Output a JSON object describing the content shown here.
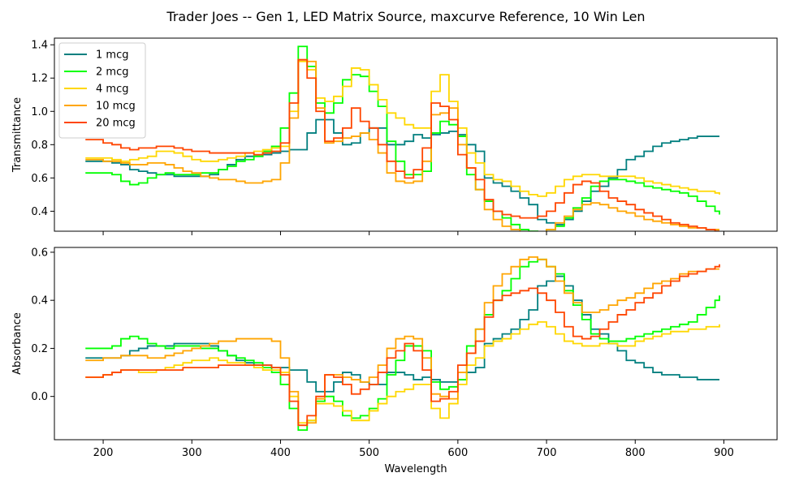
{
  "title": "Trader Joes -- Gen 1, LED Matrix Source, maxcurve Reference, 10 Win Len",
  "chart_data": [
    {
      "type": "line",
      "step": true,
      "ylabel": "Transmittance",
      "xlabel": "",
      "xlim": [
        145,
        960
      ],
      "ylim": [
        0.28,
        1.44
      ],
      "xticks": [
        200,
        300,
        400,
        500,
        600,
        700,
        800,
        900
      ],
      "yticks": [
        0.4,
        0.6,
        0.8,
        1.0,
        1.2,
        1.4
      ],
      "ytick_labels": [
        "0.4",
        "0.6",
        "0.8",
        "1.0",
        "1.2",
        "1.4"
      ],
      "legend": "top-left",
      "x": [
        180,
        190,
        200,
        210,
        220,
        230,
        240,
        250,
        260,
        270,
        280,
        290,
        300,
        310,
        320,
        330,
        340,
        350,
        360,
        370,
        380,
        390,
        400,
        410,
        420,
        430,
        440,
        450,
        460,
        470,
        480,
        490,
        500,
        510,
        520,
        530,
        540,
        550,
        560,
        570,
        580,
        590,
        600,
        610,
        620,
        630,
        640,
        650,
        660,
        670,
        680,
        690,
        700,
        710,
        720,
        730,
        740,
        750,
        760,
        770,
        780,
        790,
        800,
        810,
        820,
        830,
        840,
        850,
        860,
        870,
        880,
        890,
        895
      ],
      "series": [
        {
          "name": "1 mcg",
          "color": "#007f7f",
          "values": [
            0.7,
            0.7,
            0.7,
            0.69,
            0.68,
            0.65,
            0.64,
            0.63,
            0.62,
            0.62,
            0.61,
            0.61,
            0.61,
            0.61,
            0.62,
            0.65,
            0.68,
            0.71,
            0.73,
            0.73,
            0.74,
            0.75,
            0.76,
            0.77,
            0.77,
            0.87,
            0.95,
            0.95,
            0.87,
            0.8,
            0.81,
            0.87,
            0.9,
            0.9,
            0.8,
            0.8,
            0.82,
            0.86,
            0.84,
            0.86,
            0.87,
            0.88,
            0.86,
            0.8,
            0.76,
            0.6,
            0.57,
            0.55,
            0.52,
            0.48,
            0.44,
            0.35,
            0.33,
            0.32,
            0.35,
            0.4,
            0.46,
            0.52,
            0.55,
            0.6,
            0.65,
            0.71,
            0.73,
            0.76,
            0.79,
            0.81,
            0.82,
            0.83,
            0.84,
            0.85,
            0.85,
            0.85,
            0.85
          ]
        },
        {
          "name": "2 mcg",
          "color": "#00ff00",
          "values": [
            0.63,
            0.63,
            0.63,
            0.62,
            0.58,
            0.56,
            0.57,
            0.6,
            0.62,
            0.63,
            0.62,
            0.62,
            0.62,
            0.63,
            0.63,
            0.65,
            0.67,
            0.7,
            0.71,
            0.73,
            0.76,
            0.79,
            0.9,
            1.11,
            1.39,
            1.27,
            1.05,
            0.99,
            1.05,
            1.19,
            1.22,
            1.21,
            1.12,
            1.03,
            0.82,
            0.7,
            0.62,
            0.62,
            0.64,
            0.87,
            0.94,
            0.92,
            0.85,
            0.62,
            0.53,
            0.46,
            0.4,
            0.36,
            0.32,
            0.29,
            0.28,
            0.27,
            0.29,
            0.31,
            0.36,
            0.42,
            0.48,
            0.55,
            0.58,
            0.59,
            0.59,
            0.58,
            0.57,
            0.55,
            0.54,
            0.53,
            0.52,
            0.51,
            0.49,
            0.46,
            0.43,
            0.4,
            0.38
          ]
        },
        {
          "name": "4 mcg",
          "color": "#ffd700",
          "values": [
            0.72,
            0.72,
            0.72,
            0.71,
            0.7,
            0.71,
            0.72,
            0.73,
            0.76,
            0.76,
            0.75,
            0.73,
            0.71,
            0.7,
            0.7,
            0.71,
            0.72,
            0.73,
            0.75,
            0.76,
            0.77,
            0.78,
            0.79,
            1.0,
            1.3,
            1.25,
            1.08,
            1.06,
            1.09,
            1.15,
            1.26,
            1.25,
            1.16,
            1.07,
            0.99,
            0.96,
            0.92,
            0.9,
            0.9,
            1.12,
            1.22,
            1.06,
            0.9,
            0.75,
            0.69,
            0.62,
            0.59,
            0.58,
            0.55,
            0.52,
            0.5,
            0.49,
            0.51,
            0.55,
            0.59,
            0.61,
            0.62,
            0.62,
            0.61,
            0.61,
            0.61,
            0.61,
            0.6,
            0.58,
            0.57,
            0.56,
            0.55,
            0.54,
            0.53,
            0.52,
            0.52,
            0.51,
            0.5
          ]
        },
        {
          "name": "10 mcg",
          "color": "#ffa500",
          "values": [
            0.71,
            0.71,
            0.7,
            0.7,
            0.69,
            0.68,
            0.68,
            0.69,
            0.69,
            0.68,
            0.66,
            0.64,
            0.63,
            0.61,
            0.6,
            0.59,
            0.59,
            0.58,
            0.57,
            0.57,
            0.58,
            0.59,
            0.69,
            0.96,
            1.31,
            1.3,
            1.02,
            0.81,
            0.82,
            0.84,
            0.85,
            0.87,
            0.83,
            0.75,
            0.63,
            0.58,
            0.57,
            0.58,
            0.7,
            0.98,
            0.99,
            1.02,
            0.8,
            0.66,
            0.53,
            0.41,
            0.35,
            0.31,
            0.29,
            0.27,
            0.26,
            0.27,
            0.29,
            0.33,
            0.37,
            0.41,
            0.44,
            0.45,
            0.44,
            0.42,
            0.4,
            0.39,
            0.37,
            0.35,
            0.34,
            0.33,
            0.32,
            0.31,
            0.3,
            0.3,
            0.29,
            0.29,
            0.29
          ]
        },
        {
          "name": "20 mcg",
          "color": "#ff4500",
          "values": [
            0.83,
            0.83,
            0.81,
            0.8,
            0.78,
            0.77,
            0.78,
            0.78,
            0.79,
            0.79,
            0.78,
            0.77,
            0.76,
            0.76,
            0.75,
            0.75,
            0.75,
            0.75,
            0.75,
            0.74,
            0.75,
            0.76,
            0.81,
            1.05,
            1.31,
            1.2,
            1.0,
            0.82,
            0.84,
            0.9,
            1.02,
            0.94,
            0.9,
            0.8,
            0.7,
            0.64,
            0.6,
            0.65,
            0.78,
            1.05,
            1.03,
            0.95,
            0.74,
            0.66,
            0.59,
            0.47,
            0.4,
            0.38,
            0.37,
            0.36,
            0.36,
            0.37,
            0.4,
            0.45,
            0.51,
            0.56,
            0.58,
            0.57,
            0.52,
            0.48,
            0.46,
            0.44,
            0.41,
            0.39,
            0.37,
            0.35,
            0.33,
            0.32,
            0.31,
            0.3,
            0.29,
            0.28,
            0.28
          ]
        }
      ]
    },
    {
      "type": "line",
      "step": true,
      "ylabel": "Absorbance",
      "xlabel": "Wavelength",
      "xlim": [
        145,
        960
      ],
      "ylim": [
        -0.18,
        0.62
      ],
      "xticks": [
        200,
        300,
        400,
        500,
        600,
        700,
        800,
        900
      ],
      "xtick_labels": [
        "200",
        "300",
        "400",
        "500",
        "600",
        "700",
        "800",
        "900"
      ],
      "yticks": [
        0.0,
        0.2,
        0.4,
        0.6
      ],
      "ytick_labels": [
        "0.0",
        "0.2",
        "0.4",
        "0.6"
      ],
      "x": [
        180,
        190,
        200,
        210,
        220,
        230,
        240,
        250,
        260,
        270,
        280,
        290,
        300,
        310,
        320,
        330,
        340,
        350,
        360,
        370,
        380,
        390,
        400,
        410,
        420,
        430,
        440,
        450,
        460,
        470,
        480,
        490,
        500,
        510,
        520,
        530,
        540,
        550,
        560,
        570,
        580,
        590,
        600,
        610,
        620,
        630,
        640,
        650,
        660,
        670,
        680,
        690,
        700,
        710,
        720,
        730,
        740,
        750,
        760,
        770,
        780,
        790,
        800,
        810,
        820,
        830,
        840,
        850,
        860,
        870,
        880,
        890,
        895
      ],
      "series": [
        {
          "name": "1 mcg",
          "color": "#007f7f",
          "values": [
            0.16,
            0.16,
            0.16,
            0.16,
            0.17,
            0.19,
            0.2,
            0.21,
            0.21,
            0.21,
            0.22,
            0.22,
            0.22,
            0.22,
            0.21,
            0.19,
            0.17,
            0.15,
            0.14,
            0.13,
            0.13,
            0.12,
            0.12,
            0.11,
            0.11,
            0.06,
            0.02,
            0.02,
            0.06,
            0.1,
            0.09,
            0.06,
            0.05,
            0.05,
            0.1,
            0.1,
            0.09,
            0.07,
            0.08,
            0.07,
            0.06,
            0.06,
            0.07,
            0.1,
            0.12,
            0.22,
            0.24,
            0.26,
            0.28,
            0.32,
            0.36,
            0.46,
            0.48,
            0.5,
            0.46,
            0.4,
            0.34,
            0.28,
            0.26,
            0.22,
            0.19,
            0.15,
            0.14,
            0.12,
            0.1,
            0.09,
            0.09,
            0.08,
            0.08,
            0.07,
            0.07,
            0.07,
            0.07
          ]
        },
        {
          "name": "2 mcg",
          "color": "#00ff00",
          "values": [
            0.2,
            0.2,
            0.2,
            0.21,
            0.24,
            0.25,
            0.24,
            0.22,
            0.21,
            0.2,
            0.21,
            0.21,
            0.21,
            0.2,
            0.2,
            0.19,
            0.17,
            0.16,
            0.15,
            0.14,
            0.12,
            0.1,
            0.05,
            -0.05,
            -0.14,
            -0.1,
            -0.02,
            0.0,
            -0.02,
            -0.08,
            -0.09,
            -0.08,
            -0.05,
            -0.01,
            0.09,
            0.15,
            0.21,
            0.21,
            0.19,
            0.06,
            0.03,
            0.04,
            0.07,
            0.21,
            0.28,
            0.34,
            0.4,
            0.44,
            0.49,
            0.54,
            0.56,
            0.57,
            0.54,
            0.51,
            0.44,
            0.38,
            0.32,
            0.26,
            0.24,
            0.23,
            0.23,
            0.24,
            0.25,
            0.26,
            0.27,
            0.28,
            0.29,
            0.3,
            0.31,
            0.34,
            0.37,
            0.4,
            0.42
          ]
        },
        {
          "name": "4 mcg",
          "color": "#ffd700",
          "values": [
            0.08,
            0.08,
            0.09,
            0.1,
            0.11,
            0.11,
            0.1,
            0.1,
            0.11,
            0.12,
            0.13,
            0.14,
            0.15,
            0.15,
            0.16,
            0.15,
            0.14,
            0.14,
            0.13,
            0.12,
            0.11,
            0.11,
            0.1,
            0.0,
            -0.11,
            -0.1,
            -0.03,
            -0.03,
            -0.04,
            -0.06,
            -0.1,
            -0.1,
            -0.06,
            -0.03,
            0.0,
            0.02,
            0.03,
            0.05,
            0.05,
            -0.05,
            -0.09,
            -0.03,
            0.05,
            0.13,
            0.16,
            0.21,
            0.23,
            0.24,
            0.26,
            0.28,
            0.3,
            0.31,
            0.29,
            0.26,
            0.23,
            0.22,
            0.21,
            0.21,
            0.22,
            0.22,
            0.21,
            0.21,
            0.23,
            0.24,
            0.25,
            0.26,
            0.27,
            0.27,
            0.28,
            0.28,
            0.29,
            0.29,
            0.3
          ]
        },
        {
          "name": "10 mcg",
          "color": "#ffa500",
          "values": [
            0.15,
            0.15,
            0.16,
            0.16,
            0.17,
            0.17,
            0.17,
            0.16,
            0.16,
            0.17,
            0.18,
            0.19,
            0.2,
            0.21,
            0.22,
            0.23,
            0.23,
            0.24,
            0.24,
            0.24,
            0.24,
            0.23,
            0.16,
            0.02,
            -0.12,
            -0.11,
            -0.01,
            0.09,
            0.09,
            0.08,
            0.07,
            0.06,
            0.08,
            0.13,
            0.2,
            0.24,
            0.25,
            0.24,
            0.16,
            0.01,
            0.0,
            -0.01,
            0.1,
            0.18,
            0.28,
            0.39,
            0.46,
            0.51,
            0.54,
            0.57,
            0.58,
            0.57,
            0.54,
            0.48,
            0.43,
            0.39,
            0.35,
            0.35,
            0.36,
            0.38,
            0.4,
            0.41,
            0.43,
            0.45,
            0.47,
            0.48,
            0.49,
            0.51,
            0.52,
            0.52,
            0.53,
            0.53,
            0.53
          ]
        },
        {
          "name": "20 mcg",
          "color": "#ff4500",
          "values": [
            0.08,
            0.08,
            0.09,
            0.1,
            0.11,
            0.11,
            0.11,
            0.11,
            0.11,
            0.11,
            0.11,
            0.12,
            0.12,
            0.12,
            0.12,
            0.13,
            0.13,
            0.13,
            0.13,
            0.13,
            0.13,
            0.12,
            0.09,
            -0.02,
            -0.12,
            -0.08,
            0.0,
            0.09,
            0.08,
            0.05,
            0.01,
            0.03,
            0.05,
            0.1,
            0.16,
            0.19,
            0.22,
            0.19,
            0.11,
            -0.02,
            -0.01,
            0.02,
            0.13,
            0.18,
            0.23,
            0.33,
            0.4,
            0.42,
            0.43,
            0.44,
            0.45,
            0.43,
            0.4,
            0.35,
            0.29,
            0.25,
            0.24,
            0.25,
            0.28,
            0.31,
            0.34,
            0.36,
            0.39,
            0.41,
            0.43,
            0.46,
            0.48,
            0.5,
            0.51,
            0.52,
            0.53,
            0.54,
            0.55
          ]
        }
      ]
    }
  ]
}
